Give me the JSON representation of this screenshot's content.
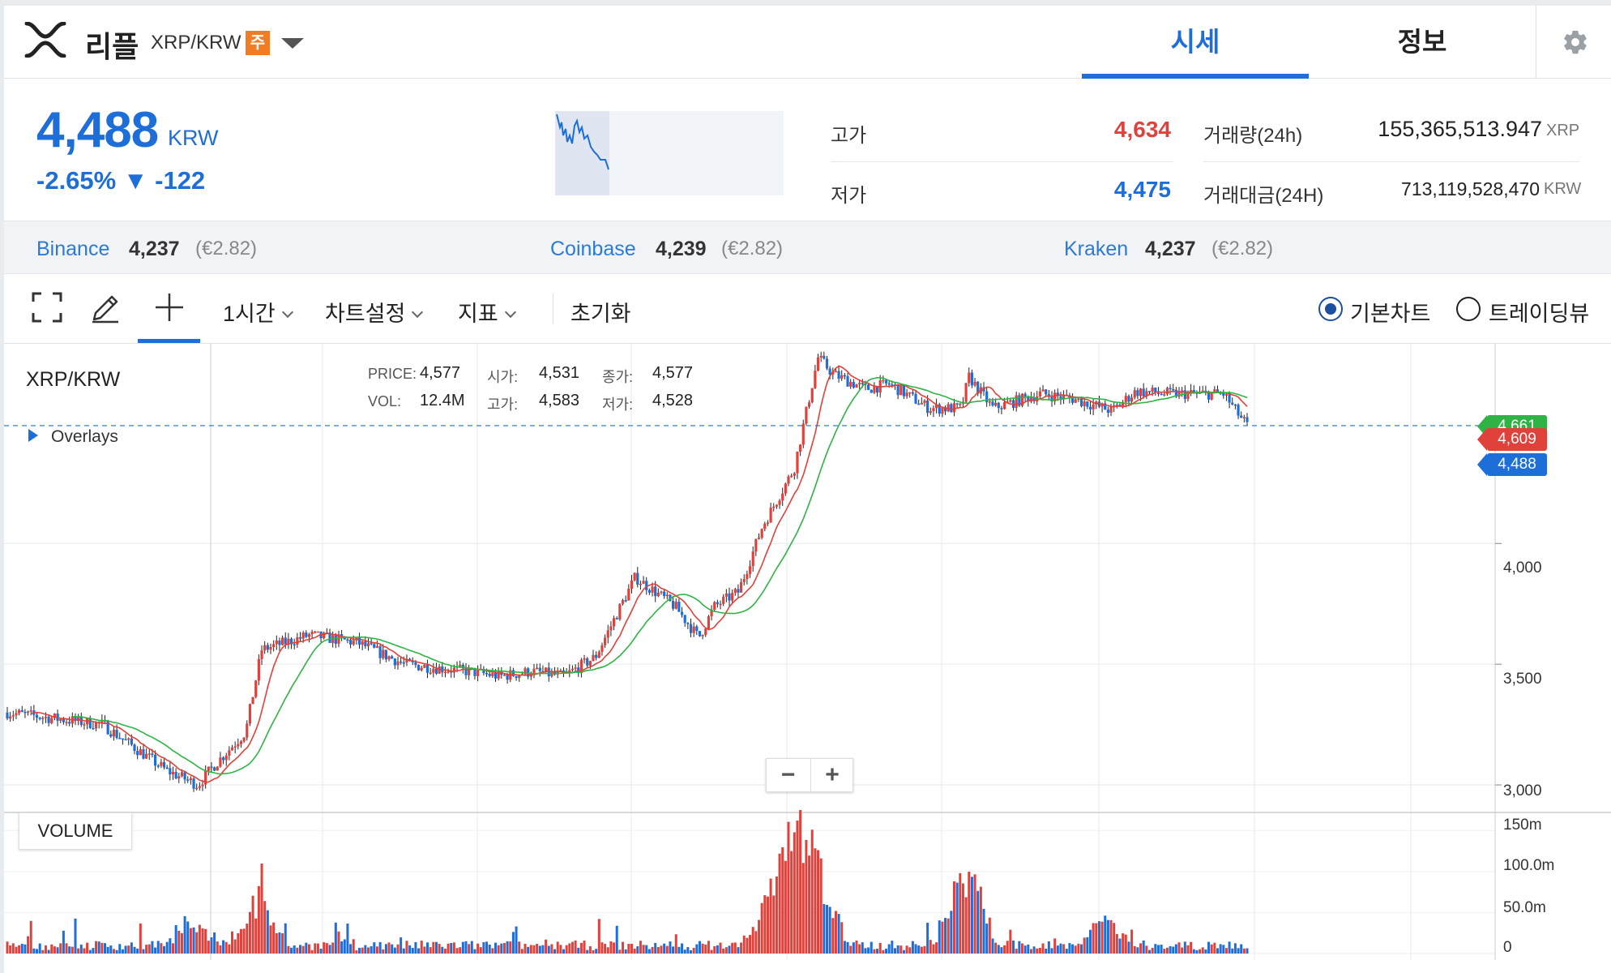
{
  "header": {
    "coin_name": "리플",
    "pair": "XRP/KRW",
    "badge": "주",
    "tabs": [
      {
        "label": "시세",
        "active": true
      },
      {
        "label": "정보",
        "active": false
      }
    ]
  },
  "summary": {
    "price": "4,488",
    "price_unit": "KRW",
    "change": "-2.65% ▼ -122",
    "high_label": "고가",
    "high": "4,634",
    "low_label": "저가",
    "low": "4,475",
    "vol24_label": "거래량(24h)",
    "vol24": "155,365,513.947",
    "vol24_unit": "XRP",
    "amt24_label": "거래대금(24H)",
    "amt24": "713,119,528,470",
    "amt24_unit": "KRW"
  },
  "exchanges": [
    {
      "name": "Binance",
      "price": "4,237",
      "eur": "(€2.82)"
    },
    {
      "name": "Coinbase",
      "price": "4,239",
      "eur": "(€2.82)"
    },
    {
      "name": "Kraken",
      "price": "4,237",
      "eur": "(€2.82)"
    }
  ],
  "toolbar": {
    "interval": "1시간",
    "chart_settings": "차트설정",
    "indicators": "지표",
    "reset": "초기화",
    "basic_chart": "기본차트",
    "tradingview": "트레이딩뷰"
  },
  "chart": {
    "pair_label": "XRP/KRW",
    "overlays": "Overlays",
    "legend": {
      "price_label": "PRICE:",
      "price": "4,577",
      "vol_label": "VOL:",
      "vol": "12.4M",
      "open_label": "시가:",
      "open": "4,531",
      "high_label": "고가:",
      "high": "4,583",
      "close_label": "종가:",
      "close": "4,577",
      "low_label": "저가:",
      "low": "4,528"
    },
    "volume_label": "VOLUME",
    "zoom_out": "−",
    "zoom_in": "+",
    "price_tags": {
      "green": "4,661",
      "red": "4,609",
      "blue": "4,488"
    },
    "price_axis": [
      "4,000",
      "3,500",
      "3,000"
    ],
    "volume_axis": [
      "150m",
      "100.0m",
      "50.0m",
      "0"
    ]
  },
  "chart_data": {
    "type": "candlestick",
    "ylim": [
      2980,
      4780
    ],
    "current_price": 4488,
    "ma_short_color": "#e0413b",
    "ma_long_color": "#2fb344",
    "up_color": "#e0413b",
    "down_color": "#1d6ed8",
    "price_path": [
      [
        0,
        3300
      ],
      [
        0.06,
        3250
      ],
      [
        0.1,
        3060
      ],
      [
        0.12,
        3000
      ],
      [
        0.13,
        3080
      ],
      [
        0.15,
        3220
      ],
      [
        0.16,
        3560
      ],
      [
        0.19,
        3620
      ],
      [
        0.22,
        3590
      ],
      [
        0.25,
        3500
      ],
      [
        0.29,
        3470
      ],
      [
        0.31,
        3450
      ],
      [
        0.33,
        3470
      ],
      [
        0.35,
        3450
      ],
      [
        0.37,
        3530
      ],
      [
        0.395,
        3860
      ],
      [
        0.42,
        3740
      ],
      [
        0.435,
        3610
      ],
      [
        0.445,
        3740
      ],
      [
        0.46,
        3800
      ],
      [
        0.475,
        4070
      ],
      [
        0.495,
        4310
      ],
      [
        0.51,
        4770
      ],
      [
        0.52,
        4700
      ],
      [
        0.54,
        4640
      ],
      [
        0.555,
        4660
      ],
      [
        0.565,
        4620
      ],
      [
        0.58,
        4560
      ],
      [
        0.6,
        4560
      ],
      [
        0.605,
        4690
      ],
      [
        0.62,
        4560
      ],
      [
        0.65,
        4620
      ],
      [
        0.67,
        4600
      ],
      [
        0.695,
        4550
      ],
      [
        0.71,
        4630
      ],
      [
        0.73,
        4620
      ],
      [
        0.765,
        4620
      ],
      [
        0.775,
        4530
      ],
      [
        0.78,
        4488
      ]
    ],
    "volume_spikes": [
      [
        0.12,
        35
      ],
      [
        0.158,
        80
      ],
      [
        0.48,
        60
      ],
      [
        0.495,
        175
      ],
      [
        0.51,
        110
      ],
      [
        0.6,
        85
      ],
      [
        0.605,
        55
      ],
      [
        0.69,
        45
      ]
    ],
    "volume_ylim": [
      0,
      170
    ]
  }
}
